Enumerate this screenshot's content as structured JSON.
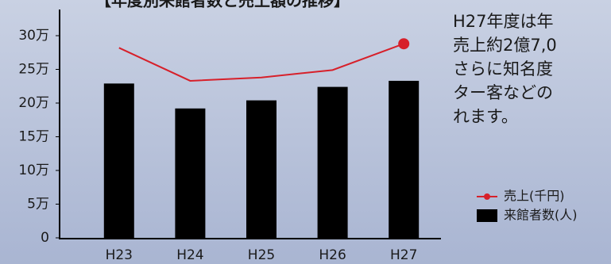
{
  "chart_data": {
    "type": "bar",
    "title": "【年度別来館者数と売上額の推移】",
    "categories": [
      "H23",
      "H24",
      "H25",
      "H26",
      "H27"
    ],
    "series": [
      {
        "name": "来館者数(人)",
        "type": "bar",
        "color": "#000000",
        "values": [
          229000,
          192000,
          204000,
          224000,
          233000
        ]
      },
      {
        "name": "売上(千円)",
        "type": "line",
        "color": "#d7202a",
        "values": [
          282000,
          233000,
          238000,
          249000,
          288000
        ]
      }
    ],
    "ylim": [
      0,
      300000
    ],
    "yticks": [
      0,
      {
        "value": 50000,
        "label": "5万"
      },
      {
        "value": 100000,
        "label": "10万"
      },
      {
        "value": 150000,
        "label": "15万"
      },
      {
        "value": 200000,
        "label": "20万"
      },
      {
        "value": 250000,
        "label": "25万"
      },
      {
        "value": 300000,
        "label": "30万"
      }
    ]
  },
  "side_text": {
    "lines": [
      "H27年度は年",
      "売上約2億7,0",
      "さらに知名度",
      "ター客などの",
      "れます。"
    ]
  }
}
